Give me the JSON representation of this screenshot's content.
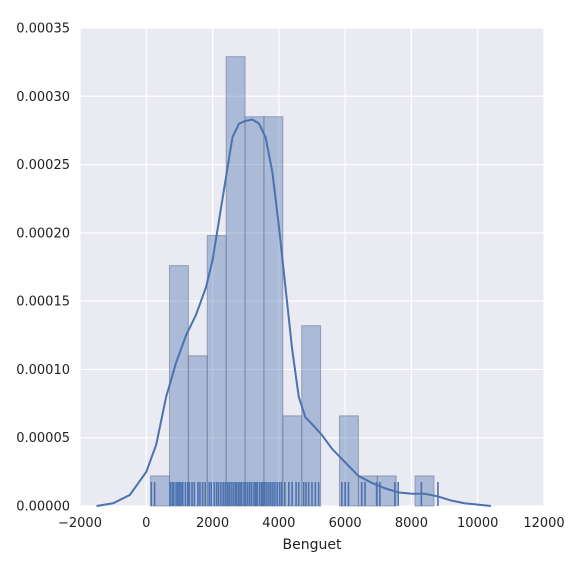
{
  "colors": {
    "plot_background": "#eaeaf2",
    "grid": "#ffffff",
    "bar_fill": "#4c72b0",
    "kde_line": "#4c72b0",
    "rug": "#4c72b0"
  },
  "chart_data": {
    "type": "histogram",
    "title": "",
    "xlabel": "Benguet",
    "ylabel": "",
    "xlim": [
      -2000,
      12000
    ],
    "ylim": [
      0,
      0.00035
    ],
    "grid": true,
    "xticks": [
      -2000,
      0,
      2000,
      4000,
      6000,
      8000,
      10000,
      12000
    ],
    "xtick_labels": [
      "−2000",
      "0",
      "2000",
      "4000",
      "6000",
      "8000",
      "10000",
      "12000"
    ],
    "yticks": [
      0,
      5e-05,
      0.0001,
      0.00015,
      0.0002,
      0.00025,
      0.0003,
      0.00035
    ],
    "ytick_labels": [
      "0.00000",
      "0.00005",
      "0.00010",
      "0.00015",
      "0.00020",
      "0.00025",
      "0.00030",
      "0.00035"
    ],
    "bins": [
      {
        "x0": 130,
        "x1": 700,
        "density": 2.2e-05
      },
      {
        "x0": 700,
        "x1": 1270,
        "density": 0.000176
      },
      {
        "x0": 1270,
        "x1": 1840,
        "density": 0.00011
      },
      {
        "x0": 1840,
        "x1": 2410,
        "density": 0.000198
      },
      {
        "x0": 2410,
        "x1": 2980,
        "density": 0.000329
      },
      {
        "x0": 2980,
        "x1": 3550,
        "density": 0.000285
      },
      {
        "x0": 3550,
        "x1": 4120,
        "density": 0.000285
      },
      {
        "x0": 4120,
        "x1": 4690,
        "density": 6.6e-05
      },
      {
        "x0": 4690,
        "x1": 5260,
        "density": 0.000132
      },
      {
        "x0": 5260,
        "x1": 5830,
        "density": 0
      },
      {
        "x0": 5830,
        "x1": 6400,
        "density": 6.6e-05
      },
      {
        "x0": 6400,
        "x1": 6970,
        "density": 2.2e-05
      },
      {
        "x0": 6970,
        "x1": 7540,
        "density": 2.2e-05
      },
      {
        "x0": 7540,
        "x1": 8110,
        "density": 0
      },
      {
        "x0": 8110,
        "x1": 8680,
        "density": 2.2e-05
      }
    ],
    "kde": {
      "x": [
        -1500,
        -1000,
        -500,
        0,
        300,
        600,
        900,
        1200,
        1500,
        1800,
        2000,
        2200,
        2400,
        2600,
        2800,
        3000,
        3200,
        3400,
        3600,
        3800,
        4000,
        4200,
        4400,
        4600,
        4800,
        5000,
        5300,
        5600,
        6000,
        6400,
        6800,
        7200,
        7600,
        8000,
        8400,
        8800,
        9200,
        9600,
        10000,
        10400
      ],
      "y": [
        0.0,
        2e-06,
        8e-06,
        2.5e-05,
        4.5e-05,
        8e-05,
        0.000105,
        0.000125,
        0.00014,
        0.00016,
        0.00018,
        0.00021,
        0.00024,
        0.00027,
        0.00028,
        0.000282,
        0.000283,
        0.00028,
        0.00027,
        0.000245,
        0.000205,
        0.00016,
        0.000115,
        8e-05,
        6.5e-05,
        6e-05,
        5.2e-05,
        4.2e-05,
        3.2e-05,
        2.2e-05,
        1.7e-05,
        1.3e-05,
        1e-05,
        9e-06,
        9e-06,
        7e-06,
        4e-06,
        2e-06,
        1e-06,
        0.0
      ]
    },
    "rug": [
      150,
      250,
      720,
      780,
      830,
      900,
      950,
      1000,
      1050,
      1100,
      1180,
      1250,
      1300,
      1380,
      1450,
      1560,
      1620,
      1700,
      1780,
      1900,
      1960,
      2050,
      2120,
      2180,
      2250,
      2320,
      2380,
      2450,
      2500,
      2560,
      2620,
      2680,
      2720,
      2780,
      2830,
      2880,
      2950,
      3000,
      3060,
      3120,
      3180,
      3250,
      3300,
      3350,
      3420,
      3480,
      3520,
      3580,
      3640,
      3700,
      3760,
      3820,
      3880,
      3950,
      4020,
      4080,
      4180,
      4300,
      4400,
      4520,
      4600,
      4750,
      4820,
      4900,
      5000,
      5100,
      5200,
      5900,
      6000,
      6100,
      6500,
      6600,
      6950,
      7050,
      7500,
      7600,
      8300,
      8800
    ]
  }
}
